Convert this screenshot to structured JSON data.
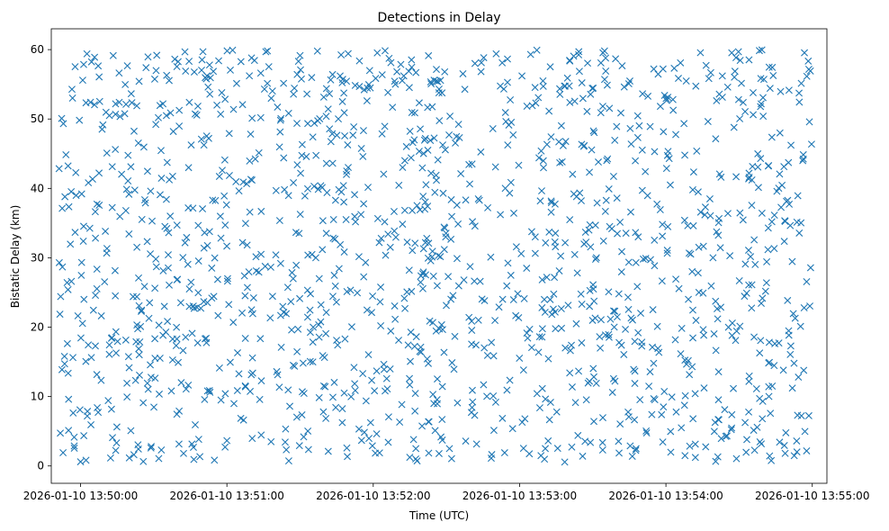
{
  "chart_data": {
    "type": "scatter",
    "title": "Detections in Delay",
    "xlabel": "Time (UTC)",
    "ylabel": "Bistatic Delay (km)",
    "xlim": [
      -0.2,
      5.1
    ],
    "ylim": [
      -2.5,
      63
    ],
    "x_unit": "minutes after 2026-01-10 13:50:00",
    "x_ticks": [
      0,
      1,
      2,
      3,
      4,
      5
    ],
    "x_tick_labels": [
      "2026-01-10 13:50:00",
      "2026-01-10 13:51:00",
      "2026-01-10 13:52:00",
      "2026-01-10 13:53:00",
      "2026-01-10 13:54:00",
      "2026-01-10 13:55:00"
    ],
    "y_ticks": [
      0,
      10,
      20,
      30,
      40,
      50,
      60
    ],
    "y_tick_labels": [
      "0",
      "10",
      "20",
      "30",
      "40",
      "50",
      "60"
    ],
    "grid": false,
    "marker": "x",
    "series": [
      {
        "name": "detections",
        "color": "#1f77b4",
        "x_range": [
          -0.15,
          5.0
        ],
        "y_range": [
          0.5,
          60
        ],
        "count": 1500,
        "generator_seed": 20260110
      }
    ]
  }
}
